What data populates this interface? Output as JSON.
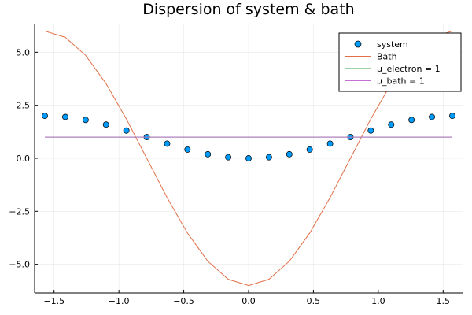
{
  "chart_data": {
    "type": "line",
    "title": "Dispersion of system & bath",
    "xlabel": "",
    "ylabel": "",
    "xlim": [
      -1.65,
      1.65
    ],
    "ylim": [
      -6.35,
      6.35
    ],
    "xticks": [
      -1.5,
      -1.0,
      -0.5,
      0.0,
      0.5,
      1.0,
      1.5
    ],
    "xtick_labels": [
      "−1.5",
      "−1.0",
      "−0.5",
      "0.0",
      "0.5",
      "1.0",
      "1.5"
    ],
    "yticks": [
      -5.0,
      -2.5,
      0.0,
      2.5,
      5.0
    ],
    "ytick_labels": [
      "−5.0",
      "−2.5",
      "0.0",
      "2.5",
      "5.0"
    ],
    "grid": true,
    "legend_position": "top-right",
    "series": [
      {
        "name": "system",
        "kind": "scatter",
        "color": "#009af9",
        "x": [
          -1.5708,
          -1.4137,
          -1.2566,
          -1.0996,
          -0.9425,
          -0.7854,
          -0.6283,
          -0.4712,
          -0.3142,
          -0.1571,
          0.0,
          0.1571,
          0.3142,
          0.4712,
          0.6283,
          0.7854,
          0.9425,
          1.0996,
          1.2566,
          1.4137,
          1.5708
        ],
        "y": [
          2.0,
          1.951,
          1.809,
          1.588,
          1.309,
          1.0,
          0.691,
          0.412,
          0.191,
          0.049,
          0.0,
          0.049,
          0.191,
          0.412,
          0.691,
          1.0,
          1.309,
          1.588,
          1.809,
          1.951,
          2.0
        ]
      },
      {
        "name": "Bath",
        "kind": "line",
        "color": "#e26f46",
        "x": [
          -1.5708,
          -1.4137,
          -1.2566,
          -1.0996,
          -0.9425,
          -0.7854,
          -0.6283,
          -0.4712,
          -0.3142,
          -0.1571,
          0.0,
          0.1571,
          0.3142,
          0.4712,
          0.6283,
          0.7854,
          0.9425,
          1.0996,
          1.2566,
          1.4137,
          1.5708
        ],
        "y": [
          6.0,
          5.706,
          4.854,
          3.527,
          1.854,
          0.0,
          -1.854,
          -3.527,
          -4.854,
          -5.706,
          -6.0,
          -5.706,
          -4.854,
          -3.527,
          -1.854,
          0.0,
          1.854,
          3.527,
          4.854,
          5.706,
          6.0
        ]
      },
      {
        "name": "μ_electron = 1",
        "kind": "line",
        "color": "#3da44d",
        "x": [
          -1.5708,
          1.5708
        ],
        "y": [
          1.0,
          1.0
        ]
      },
      {
        "name": "μ_bath = 1",
        "kind": "line",
        "color": "#c271d2",
        "x": [
          -1.5708,
          1.5708
        ],
        "y": [
          1.0,
          1.0
        ]
      }
    ]
  }
}
